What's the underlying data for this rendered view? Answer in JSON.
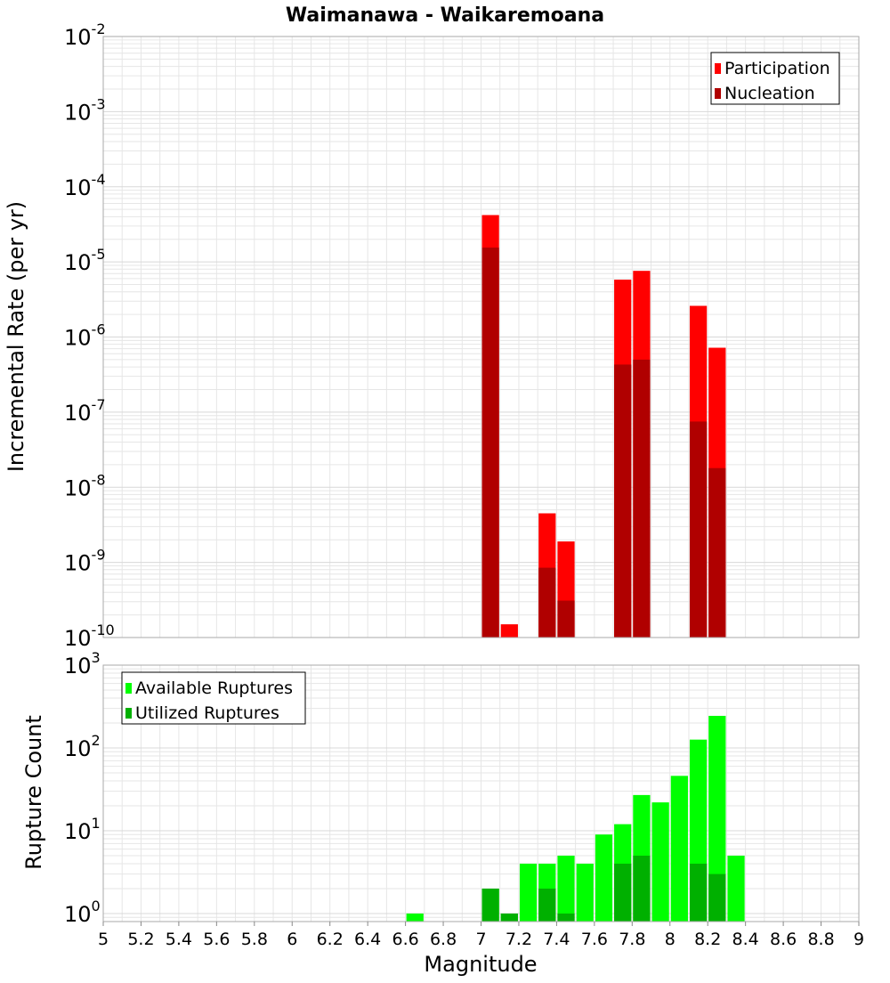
{
  "title": "Waimanawa - Waikaremoana",
  "colors": {
    "participation": "#ff0000",
    "nucleation": "#b00000",
    "available": "#00ff00",
    "utilized": "#00b000",
    "grid": "#e6e6e6",
    "frame": "#aaaaaa"
  },
  "chart_data": [
    {
      "type": "bar",
      "panel": "top",
      "title": "Waimanawa - Waikaremoana",
      "xlabel": "",
      "ylabel": "Incremental Rate (per yr)",
      "xlim": [
        5,
        9
      ],
      "ylim": [
        1e-10,
        0.01
      ],
      "yscale": "log",
      "grid": true,
      "legend_position": "top-right",
      "series": [
        {
          "name": "Participation",
          "color": "#ff0000",
          "points": [
            {
              "x": 7.05,
              "y": 4.2e-05
            },
            {
              "x": 7.15,
              "y": 1.5e-10
            },
            {
              "x": 7.35,
              "y": 4.5e-09
            },
            {
              "x": 7.45,
              "y": 1.9e-09
            },
            {
              "x": 7.75,
              "y": 5.8e-06
            },
            {
              "x": 7.85,
              "y": 7.6e-06
            },
            {
              "x": 8.15,
              "y": 2.6e-06
            },
            {
              "x": 8.25,
              "y": 7.2e-07
            }
          ]
        },
        {
          "name": "Nucleation",
          "color": "#b00000",
          "points": [
            {
              "x": 7.05,
              "y": 1.55e-05
            },
            {
              "x": 7.35,
              "y": 8.5e-10
            },
            {
              "x": 7.45,
              "y": 3.1e-10
            },
            {
              "x": 7.75,
              "y": 4.3e-07
            },
            {
              "x": 7.85,
              "y": 5e-07
            },
            {
              "x": 8.15,
              "y": 7.5e-08
            },
            {
              "x": 8.25,
              "y": 1.8e-08
            }
          ]
        }
      ],
      "y_ticks": [
        {
          "base": "10",
          "exp": "-2"
        },
        {
          "base": "10",
          "exp": "-3"
        },
        {
          "base": "10",
          "exp": "-4"
        },
        {
          "base": "10",
          "exp": "-5"
        },
        {
          "base": "10",
          "exp": "-6"
        },
        {
          "base": "10",
          "exp": "-7"
        },
        {
          "base": "10",
          "exp": "-8"
        },
        {
          "base": "10",
          "exp": "-9"
        },
        {
          "base": "10",
          "exp": "-10"
        }
      ]
    },
    {
      "type": "bar",
      "panel": "bottom",
      "xlabel": "Magnitude",
      "ylabel": "Rupture Count",
      "xlim": [
        5,
        9
      ],
      "ylim": [
        0.8,
        1000
      ],
      "yscale": "log",
      "grid": true,
      "legend_position": "top-left",
      "series": [
        {
          "name": "Available Ruptures",
          "color": "#00ff00",
          "points": [
            {
              "x": 6.65,
              "y": 1
            },
            {
              "x": 7.05,
              "y": 2
            },
            {
              "x": 7.15,
              "y": 1
            },
            {
              "x": 7.25,
              "y": 4
            },
            {
              "x": 7.35,
              "y": 4
            },
            {
              "x": 7.45,
              "y": 5
            },
            {
              "x": 7.55,
              "y": 4
            },
            {
              "x": 7.65,
              "y": 9
            },
            {
              "x": 7.75,
              "y": 12
            },
            {
              "x": 7.85,
              "y": 27
            },
            {
              "x": 7.95,
              "y": 22
            },
            {
              "x": 8.05,
              "y": 46
            },
            {
              "x": 8.15,
              "y": 126
            },
            {
              "x": 8.25,
              "y": 244
            },
            {
              "x": 8.35,
              "y": 5
            }
          ]
        },
        {
          "name": "Utilized Ruptures",
          "color": "#00b000",
          "points": [
            {
              "x": 7.05,
              "y": 2
            },
            {
              "x": 7.15,
              "y": 1
            },
            {
              "x": 7.35,
              "y": 2
            },
            {
              "x": 7.45,
              "y": 1
            },
            {
              "x": 7.75,
              "y": 4
            },
            {
              "x": 7.85,
              "y": 5
            },
            {
              "x": 8.15,
              "y": 4
            },
            {
              "x": 8.25,
              "y": 3
            }
          ]
        }
      ],
      "y_ticks": [
        {
          "base": "10",
          "exp": "3"
        },
        {
          "base": "10",
          "exp": "2"
        },
        {
          "base": "10",
          "exp": "1"
        },
        {
          "base": "10",
          "exp": "0"
        }
      ],
      "x_ticks": [
        "5",
        "5.2",
        "5.4",
        "5.6",
        "5.8",
        "6",
        "6.2",
        "6.4",
        "6.6",
        "6.8",
        "7",
        "7.2",
        "7.4",
        "7.6",
        "7.8",
        "8",
        "8.2",
        "8.4",
        "8.6",
        "8.8",
        "9"
      ]
    }
  ]
}
